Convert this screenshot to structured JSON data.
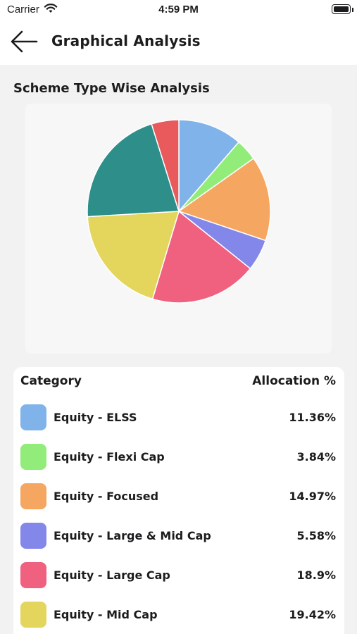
{
  "status_bar": {
    "carrier": "Carrier",
    "time": "4:59 PM"
  },
  "header": {
    "title": "Graphical Analysis"
  },
  "section": {
    "title": "Scheme Type Wise Analysis"
  },
  "table": {
    "col_category": "Category",
    "col_allocation": "Allocation %"
  },
  "chart_data": {
    "type": "pie",
    "title": "Scheme Type Wise Analysis",
    "slices": [
      {
        "label": "Equity - ELSS",
        "value": 11.36,
        "display": "11.36%",
        "color": "#7fb3ea"
      },
      {
        "label": "Equity - Flexi Cap",
        "value": 3.84,
        "display": "3.84%",
        "color": "#92ec7a"
      },
      {
        "label": "Equity - Focused",
        "value": 14.97,
        "display": "14.97%",
        "color": "#f5a660"
      },
      {
        "label": "Equity - Large & Mid Cap",
        "value": 5.58,
        "display": "5.58%",
        "color": "#8487ea"
      },
      {
        "label": "Equity - Large Cap",
        "value": 18.9,
        "display": "18.9%",
        "color": "#f0607f"
      },
      {
        "label": "Equity - Mid Cap",
        "value": 19.42,
        "display": "19.42%",
        "color": "#e4d55c"
      },
      {
        "label": "",
        "value": 21.1,
        "display": "",
        "color": "#2e8e89"
      },
      {
        "label": "",
        "value": 4.83,
        "display": "",
        "color": "#e85a5c"
      }
    ],
    "start_angle_deg": -90,
    "legend_position": "below"
  }
}
